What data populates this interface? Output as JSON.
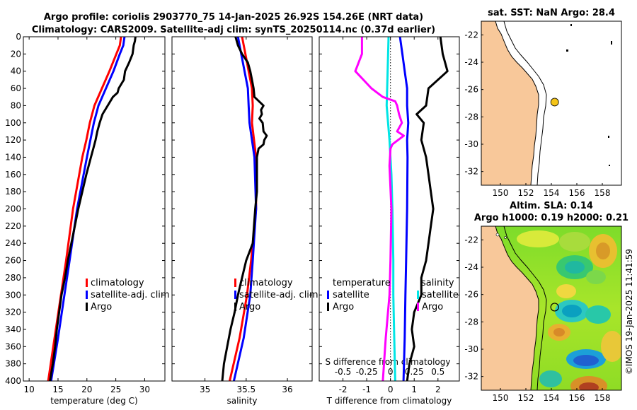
{
  "title": {
    "line1": "Argo profile: coriolis 2903770_75 14-Jan-2025 26.92S 154.26E (NRT data)",
    "line2": "Climatology: CARS2009. Satellite-adj clim: synTS_20250114.nc (0.37d earlier)"
  },
  "depth_axis": {
    "range": [
      0,
      400
    ],
    "ticks": [
      0,
      20,
      40,
      60,
      80,
      100,
      120,
      140,
      160,
      180,
      200,
      220,
      240,
      260,
      280,
      300,
      320,
      340,
      360,
      380,
      400
    ]
  },
  "colors": {
    "climatology": "#ff0000",
    "satellite": "#0000ff",
    "argo": "#000000",
    "s_satellite": "#00e5e5",
    "s_argo": "#ff00ff",
    "land": "#f8c89a",
    "marker": "#f5c518"
  },
  "chart_data": [
    {
      "type": "line",
      "panel": "temperature",
      "xlabel": "temperature (deg C)",
      "xlim": [
        9,
        33.5
      ],
      "xticks": [
        10,
        15,
        20,
        25,
        30
      ],
      "legend": [
        "climatology",
        "satellite-adj. clim",
        "Argo"
      ],
      "series": [
        {
          "name": "climatology",
          "depth": [
            0,
            10,
            20,
            40,
            60,
            80,
            100,
            120,
            140,
            200,
            260,
            300,
            350,
            400
          ],
          "values": [
            25.9,
            25.7,
            25.1,
            23.9,
            22.6,
            21.3,
            20.5,
            19.9,
            19.2,
            17.6,
            16.4,
            15.5,
            14.4,
            13.3
          ]
        },
        {
          "name": "satellite-adj. clim",
          "depth": [
            0,
            10,
            20,
            40,
            60,
            80,
            100,
            120,
            140,
            200,
            260,
            300,
            350,
            400
          ],
          "values": [
            26.5,
            26.3,
            25.7,
            24.6,
            23.3,
            22.0,
            21.2,
            20.6,
            20.0,
            18.3,
            17.0,
            16.1,
            15.0,
            13.8
          ]
        },
        {
          "name": "Argo",
          "depth": [
            0,
            5,
            10,
            20,
            30,
            40,
            50,
            60,
            65,
            70,
            80,
            90,
            100,
            110,
            120,
            130,
            140,
            160,
            180,
            200,
            220,
            240,
            260,
            280,
            300,
            320,
            340,
            360,
            380,
            400
          ],
          "values": [
            28.4,
            28.3,
            28.1,
            27.9,
            27.3,
            26.6,
            26.4,
            25.5,
            25.3,
            24.5,
            23.6,
            22.7,
            22.2,
            21.8,
            21.5,
            21.1,
            20.7,
            19.9,
            19.2,
            18.5,
            17.9,
            17.3,
            16.7,
            16.2,
            15.6,
            15.2,
            14.8,
            14.5,
            14.1,
            13.6
          ]
        }
      ]
    },
    {
      "type": "line",
      "panel": "salinity",
      "xlabel": "salinity",
      "xlim": [
        34.6,
        36.3
      ],
      "xticks": [
        35,
        35.5,
        36
      ],
      "legend": [
        "climatology",
        "satellite-adj. clim",
        "Argo"
      ],
      "series": [
        {
          "name": "climatology",
          "depth": [
            0,
            20,
            40,
            60,
            80,
            100,
            140,
            200,
            260,
            300,
            350,
            400
          ],
          "values": [
            35.45,
            35.49,
            35.53,
            35.57,
            35.58,
            35.57,
            35.62,
            35.62,
            35.56,
            35.51,
            35.42,
            35.3
          ]
        },
        {
          "name": "satellite-adj. clim",
          "depth": [
            0,
            20,
            40,
            60,
            80,
            100,
            140,
            200,
            260,
            300,
            350,
            400
          ],
          "values": [
            35.4,
            35.44,
            35.48,
            35.52,
            35.53,
            35.54,
            35.6,
            35.62,
            35.58,
            35.55,
            35.47,
            35.35
          ]
        },
        {
          "name": "Argo",
          "depth": [
            0,
            10,
            20,
            30,
            40,
            50,
            60,
            70,
            80,
            85,
            90,
            95,
            100,
            110,
            115,
            120,
            125,
            130,
            140,
            160,
            180,
            200,
            240,
            260,
            280,
            300,
            320,
            340,
            360,
            380,
            400
          ],
          "values": [
            35.37,
            35.4,
            35.45,
            35.52,
            35.55,
            35.57,
            35.59,
            35.6,
            35.71,
            35.68,
            35.69,
            35.66,
            35.7,
            35.71,
            35.75,
            35.72,
            35.71,
            35.65,
            35.63,
            35.63,
            35.63,
            35.61,
            35.58,
            35.5,
            35.45,
            35.4,
            35.36,
            35.31,
            35.27,
            35.23,
            35.21
          ]
        }
      ]
    },
    {
      "type": "line",
      "panel": "difference",
      "xlabel": "T difference from climatology",
      "xlim": [
        -3,
        2.9
      ],
      "xticks": [
        -2,
        -1,
        0,
        1,
        2
      ],
      "top_axis_label": "S difference from climatology",
      "top_ticks": [
        -0.5,
        -0.25,
        0,
        0.25,
        0.5
      ],
      "top_tick_labels": [
        "-0.5",
        "-0.25",
        "0",
        "0.25",
        "0.5"
      ],
      "legend_temperature": {
        "heading": "temperature",
        "items": [
          "satellite",
          "Argo"
        ]
      },
      "legend_salinity": {
        "heading": "salinity",
        "items": [
          "satellite",
          "Argo"
        ]
      },
      "series": [
        {
          "name": "T satellite",
          "depth": [
            0,
            20,
            40,
            60,
            80,
            100,
            120,
            140,
            200,
            260,
            300,
            350,
            400
          ],
          "values": [
            0.4,
            0.5,
            0.6,
            0.7,
            0.7,
            0.75,
            0.7,
            0.72,
            0.7,
            0.66,
            0.63,
            0.6,
            0.55
          ]
        },
        {
          "name": "T Argo",
          "depth": [
            0,
            20,
            40,
            60,
            80,
            90,
            100,
            120,
            140,
            160,
            180,
            200,
            220,
            240,
            260,
            280,
            300,
            320,
            340,
            360,
            380,
            400
          ],
          "values": [
            2.1,
            2.2,
            2.4,
            1.6,
            1.5,
            1.1,
            1.4,
            1.3,
            1.5,
            1.6,
            1.7,
            1.8,
            1.7,
            1.6,
            1.5,
            1.3,
            1.3,
            1.0,
            0.9,
            1.0,
            0.8,
            0.7
          ]
        },
        {
          "name": "S satellite",
          "depth": [
            0,
            40,
            80,
            120,
            160,
            200,
            260,
            300,
            350,
            400
          ],
          "values": [
            -0.02,
            -0.03,
            -0.04,
            -0.01,
            0.01,
            0.02,
            0.03,
            0.03,
            0.04,
            0.05
          ]
        },
        {
          "name": "S Argo",
          "depth": [
            0,
            10,
            20,
            40,
            60,
            70,
            75,
            80,
            90,
            100,
            110,
            115,
            120,
            125,
            130,
            150,
            200,
            260,
            300,
            350,
            400
          ],
          "values": [
            -0.3,
            -0.3,
            -0.3,
            -0.37,
            -0.2,
            -0.08,
            0.05,
            0.07,
            0.09,
            0.12,
            0.07,
            0.14,
            0.08,
            0.02,
            0.0,
            -0.01,
            0.01,
            0.0,
            -0.01,
            -0.05,
            -0.08
          ]
        }
      ]
    }
  ],
  "maps": {
    "sst": {
      "title": "sat. SST: NaN Argo: 28.4",
      "xticks": [
        "150",
        "152",
        "154",
        "156",
        "158"
      ],
      "yticks": [
        "-22",
        "-24",
        "-26",
        "-28",
        "-30",
        "-32"
      ],
      "lon_range": [
        148.5,
        159.5
      ],
      "lat_range": [
        -33,
        -21
      ],
      "argo_pos": [
        154.26,
        -26.92
      ]
    },
    "sla": {
      "title1": "Altim. SLA: 0.14",
      "title2": "Argo h1000: 0.19 h2000: 0.21",
      "xticks": [
        "150",
        "152",
        "154",
        "156",
        "158"
      ],
      "yticks": [
        "-22",
        "-24",
        "-26",
        "-28",
        "-30",
        "-32"
      ],
      "lon_range": [
        148.5,
        159.5
      ],
      "lat_range": [
        -33,
        -21
      ],
      "argo_pos": [
        154.26,
        -26.92
      ]
    }
  },
  "credit": "©IMOS 19-Jan-2025 11:41:59"
}
